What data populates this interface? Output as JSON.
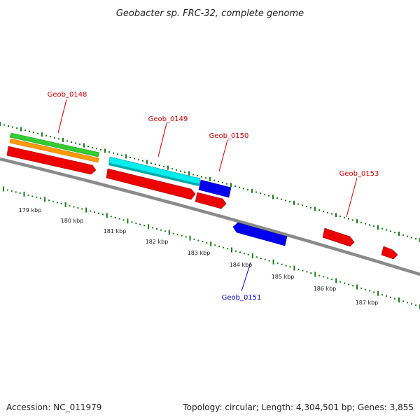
{
  "title": "Geobacter sp. FRC-32, complete genome",
  "footer": {
    "accession": "Accession: NC_011979",
    "topology": "Topology: circular; Length: 4,304,501 bp; Genes: 3,855"
  },
  "colors": {
    "backbone": "#888888",
    "tick": "#1a7a1a",
    "forward_label": "#cc0000",
    "reverse_label": "#0000cc",
    "red": "#ee0000",
    "green": "#33cc33",
    "orange": "#ff9900",
    "cyan": "#00eeee",
    "blue": "#0000ee"
  },
  "scale_labels": [
    "179 kbp",
    "180 kbp",
    "181 kbp",
    "182 kbp",
    "183 kbp",
    "184 kbp",
    "185 kbp",
    "186 kbp",
    "187 kbp"
  ],
  "gene_labels": [
    {
      "text": "Geob_0148",
      "strand": "forward"
    },
    {
      "text": "Geob_0149",
      "strand": "forward"
    },
    {
      "text": "Geob_0150",
      "strand": "forward"
    },
    {
      "text": "Geob_0153",
      "strand": "forward"
    },
    {
      "text": "Geob_0151",
      "strand": "reverse"
    }
  ]
}
